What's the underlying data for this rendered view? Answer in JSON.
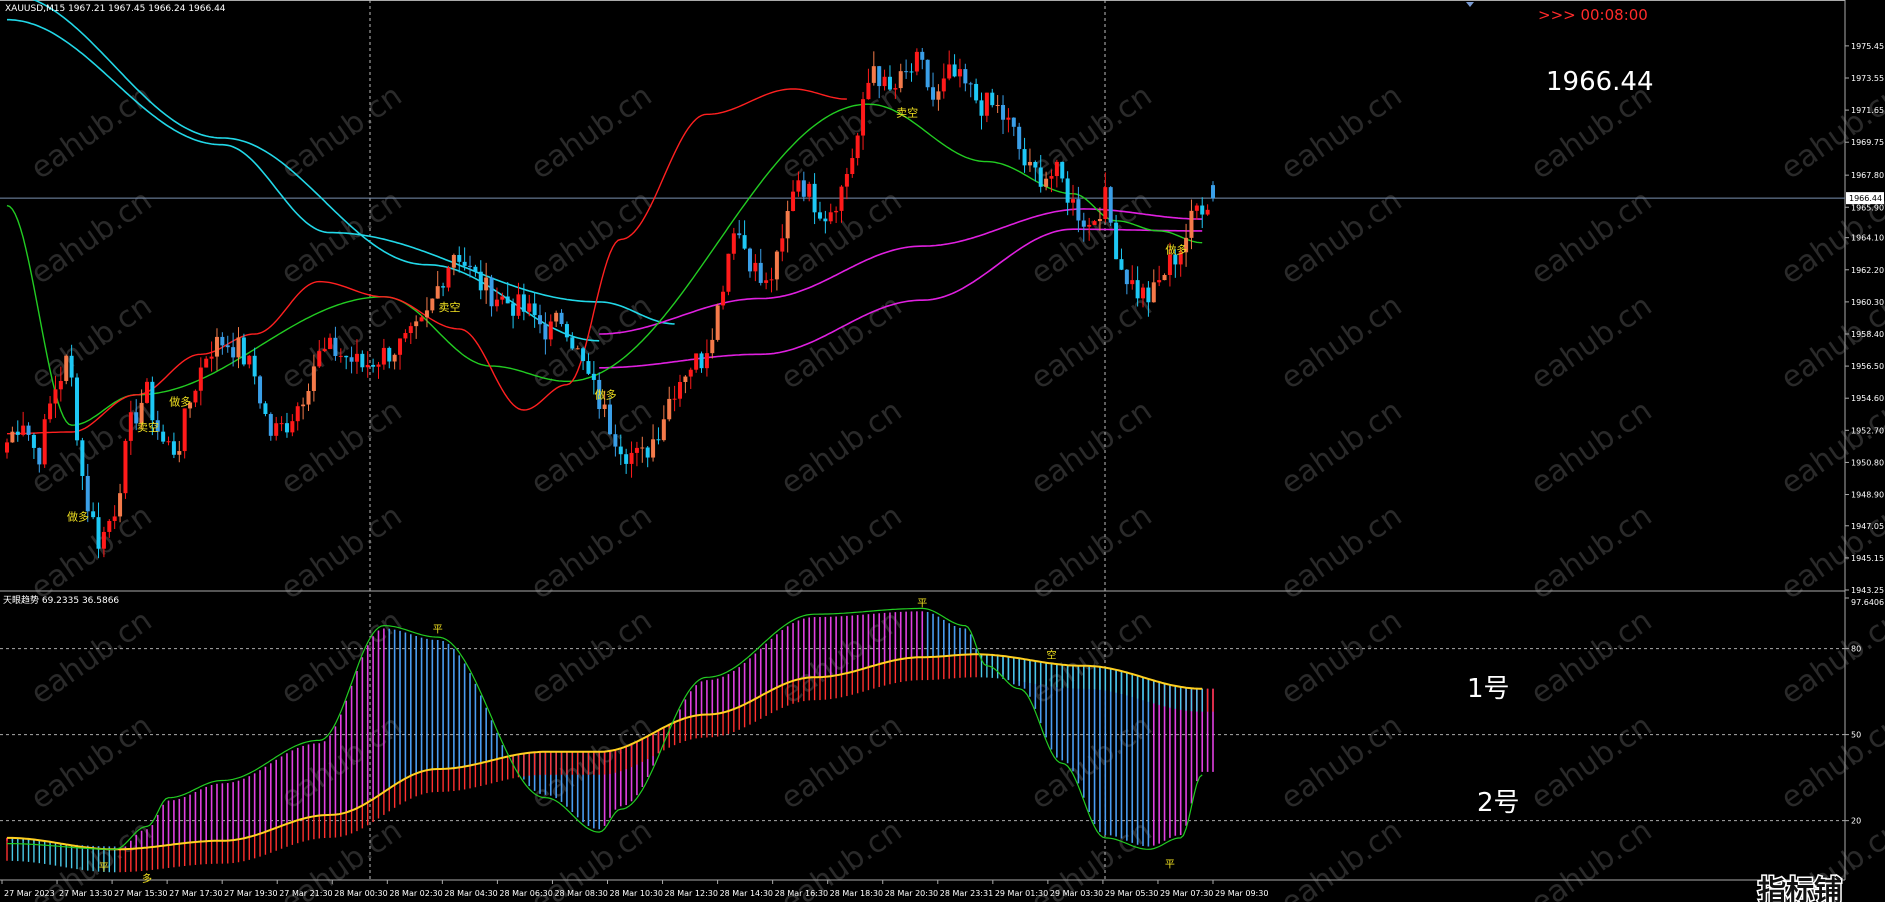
{
  "header": {
    "symbol_line": "XAUUSD,M15  1967.21 1967.45 1966.24 1966.44",
    "countdown": ">>> 00:08:00",
    "big_price": "1966.44",
    "current_price_tag": "1966.44"
  },
  "indicator": {
    "title": "天眼趋势 69.2335 36.5866",
    "label_1": "1号",
    "label_2": "2号"
  },
  "watermark": {
    "text": "eahub.cn",
    "logo_text": "指标铺"
  },
  "colors": {
    "background": "#000000",
    "bull_candle": "#ff1a1a",
    "bull_candle_soft": "#f47a4a",
    "bear_candle": "#1ec8f5",
    "bear_candle_soft": "#3a9fe8",
    "ma_fast": "#ff2020",
    "ma_green": "#22cc22",
    "ma_cyan": "#22d8e8",
    "ma_magenta": "#e020e0",
    "osc_magenta": "#e040e0",
    "osc_blue": "#4a9cf0",
    "osc_red": "#ff3030",
    "osc_yellow": "#ffd020",
    "signal_yellow": "#f0e020",
    "grid": "#aaaaaa",
    "axis_text": "#ffffff"
  },
  "chart_data": [
    {
      "type": "candlestick",
      "symbol": "XAUUSD",
      "timeframe": "M15",
      "ohlc_last": {
        "open": 1967.21,
        "high": 1967.45,
        "low": 1966.24,
        "close": 1966.44
      },
      "ylim": [
        1943.25,
        1977.1
      ],
      "y_ticks": [
        "1975.45",
        "1973.55",
        "1971.65",
        "1969.75",
        "1967.80",
        "1965.90",
        "1964.10",
        "1962.20",
        "1960.30",
        "1958.40",
        "1956.50",
        "1954.60",
        "1952.70",
        "1950.80",
        "1948.90",
        "1947.05",
        "1945.15",
        "1943.25"
      ],
      "x_ticks": [
        "27 Mar 2023",
        "27 Mar 13:30",
        "27 Mar 15:30",
        "27 Mar 17:30",
        "27 Mar 19:30",
        "27 Mar 21:30",
        "28 Mar 00:30",
        "28 Mar 02:30",
        "28 Mar 04:30",
        "28 Mar 06:30",
        "28 Mar 08:30",
        "28 Mar 10:30",
        "28 Mar 12:30",
        "28 Mar 14:30",
        "28 Mar 16:30",
        "28 Mar 18:30",
        "28 Mar 20:30",
        "28 Mar 23:31",
        "29 Mar 01:30",
        "29 Mar 03:30",
        "29 Mar 05:30",
        "29 Mar 07:30",
        "29 Mar 09:30"
      ],
      "price_anchors": [
        1952,
        1953.5,
        1951,
        1955,
        1957,
        1949,
        1946,
        1948.2,
        1953,
        1955,
        1952,
        1951.5,
        1955,
        1957.5,
        1958,
        1957.5,
        1956,
        1952.5,
        1953,
        1954.5,
        1957,
        1957.5,
        1957,
        1956.5,
        1957,
        1957.5,
        1958,
        1959,
        1961.5,
        1963.5,
        1962,
        1961,
        1960.5,
        1960,
        1959.5,
        1958.5,
        1959.5,
        1957,
        1955,
        1953,
        1951.5,
        1951,
        1952.5,
        1955,
        1956.5,
        1957,
        1960,
        1965,
        1963,
        1961,
        1963,
        1968,
        1966.5,
        1965.5,
        1967,
        1970,
        1974.5,
        1972.5,
        1973.5,
        1974.5,
        1972,
        1973.8,
        1973,
        1972,
        1971.8,
        1970.5,
        1968,
        1967.8,
        1967.8,
        1966,
        1964.8,
        1966.5,
        1962.5,
        1961,
        1960.5,
        1962.3,
        1963.6,
        1966,
        1966.44
      ],
      "ma_fast_anchors": [
        [
          0,
          1952.5
        ],
        [
          12,
          1952.6
        ],
        [
          24,
          1954.8
        ],
        [
          36,
          1957.2
        ],
        [
          46,
          1958.4
        ],
        [
          58,
          1961.5
        ],
        [
          70,
          1960.6
        ],
        [
          84,
          1958.7
        ],
        [
          96,
          1953.9
        ],
        [
          104,
          1955.4
        ],
        [
          114,
          1964.0
        ],
        [
          130,
          1971.4
        ],
        [
          146,
          1972.9
        ],
        [
          156,
          1972.3
        ]
      ],
      "ma_green_anchors": [
        [
          0,
          1966.0
        ],
        [
          12,
          1953.0
        ],
        [
          24,
          1954.8
        ],
        [
          70,
          1960.6
        ],
        [
          90,
          1956.5
        ],
        [
          104,
          1955.6
        ],
        [
          160,
          1972.0
        ],
        [
          182,
          1968.6
        ],
        [
          198,
          1966.7
        ],
        [
          206,
          1965.1
        ],
        [
          214,
          1964.5
        ],
        [
          222,
          1963.8
        ]
      ],
      "ma_cyan_a": [
        [
          0,
          1978.5
        ],
        [
          40,
          1970.0
        ],
        [
          78,
          1962.5
        ],
        [
          110,
          1958.0
        ]
      ],
      "ma_cyan_b": [
        [
          0,
          1977.0
        ],
        [
          40,
          1969.6
        ],
        [
          60,
          1964.4
        ],
        [
          110,
          1960.3
        ],
        [
          124,
          1959.0
        ]
      ],
      "ma_magenta_a": [
        [
          110,
          1958.4
        ],
        [
          140,
          1960.5
        ],
        [
          170,
          1963.6
        ],
        [
          200,
          1965.8
        ],
        [
          222,
          1965.2
        ]
      ],
      "ma_magenta_b": [
        [
          110,
          1956.4
        ],
        [
          140,
          1957.2
        ],
        [
          170,
          1960.4
        ],
        [
          198,
          1964.6
        ],
        [
          222,
          1964.5
        ]
      ],
      "signals": [
        {
          "i": 13,
          "price": 1948.2,
          "text": "做多"
        },
        {
          "i": 26,
          "price": 1953.5,
          "text": "卖空"
        },
        {
          "i": 32,
          "price": 1955.0,
          "text": "做多"
        },
        {
          "i": 82,
          "price": 1960.6,
          "text": "卖空"
        },
        {
          "i": 111,
          "price": 1955.4,
          "text": "做多"
        },
        {
          "i": 167,
          "price": 1972.1,
          "text": "卖空"
        },
        {
          "i": 217,
          "price": 1964.0,
          "text": "做多"
        }
      ]
    },
    {
      "type": "oscillator",
      "title": "天眼趋势 69.2335 36.5866",
      "values": [
        69.2335,
        36.5866
      ],
      "ylim": [
        0,
        97.6406
      ],
      "y_ticks": [
        "97.6406",
        "80",
        "50",
        "20"
      ],
      "line1_anchors": [
        [
          0,
          14
        ],
        [
          20,
          10
        ],
        [
          40,
          13
        ],
        [
          60,
          22
        ],
        [
          80,
          38
        ],
        [
          100,
          44
        ],
        [
          110,
          44
        ],
        [
          130,
          57
        ],
        [
          150,
          70
        ],
        [
          170,
          77
        ],
        [
          180,
          78
        ],
        [
          200,
          74
        ],
        [
          222,
          66
        ]
      ],
      "line2_anchors": [
        [
          0,
          12
        ],
        [
          20,
          10
        ],
        [
          26,
          18
        ],
        [
          30,
          28
        ],
        [
          40,
          34
        ],
        [
          58,
          48
        ],
        [
          70,
          88
        ],
        [
          80,
          84
        ],
        [
          100,
          28
        ],
        [
          110,
          16
        ],
        [
          114,
          24
        ],
        [
          130,
          70
        ],
        [
          150,
          92
        ],
        [
          170,
          94
        ],
        [
          178,
          88
        ],
        [
          182,
          74
        ],
        [
          188,
          66
        ],
        [
          196,
          40
        ],
        [
          204,
          14
        ],
        [
          212,
          10
        ],
        [
          218,
          14
        ],
        [
          222,
          36
        ]
      ],
      "signals": [
        {
          "i": 18,
          "value": 4,
          "text": "平"
        },
        {
          "i": 26,
          "value": 0,
          "text": "多"
        },
        {
          "i": 80,
          "value": 87,
          "text": "平"
        },
        {
          "i": 170,
          "value": 96,
          "text": "平"
        },
        {
          "i": 194,
          "value": 78,
          "text": "空"
        },
        {
          "i": 216,
          "value": 5,
          "text": "平"
        }
      ]
    }
  ]
}
